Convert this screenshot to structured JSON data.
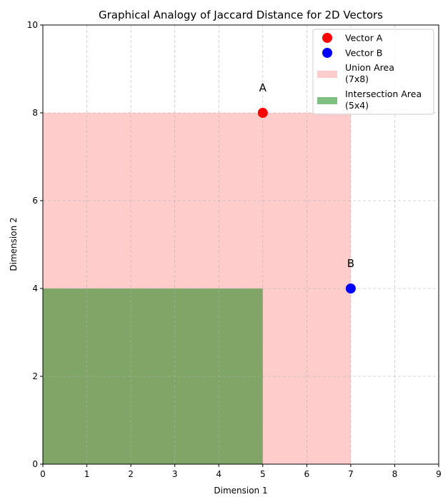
{
  "chart_data": {
    "type": "scatter",
    "title": "Graphical Analogy of Jaccard Distance for 2D Vectors",
    "xlabel": "Dimension 1",
    "ylabel": "Dimension 2",
    "xlim": [
      0,
      9
    ],
    "ylim": [
      0,
      10
    ],
    "xticks": [
      "0",
      "1",
      "2",
      "3",
      "4",
      "5",
      "6",
      "7",
      "8",
      "9"
    ],
    "yticks": [
      "0",
      "2",
      "4",
      "6",
      "8",
      "10"
    ],
    "grid": true,
    "legend_position": "top-right",
    "points": [
      {
        "name": "Vector A",
        "label": "A",
        "x": 5,
        "y": 8,
        "color": "#ff0000"
      },
      {
        "name": "Vector B",
        "label": "B",
        "x": 7,
        "y": 4,
        "color": "#0000ff"
      }
    ],
    "areas": [
      {
        "name": "Union Area (7x8)",
        "legend_lines": [
          "Union Area",
          "(7x8)"
        ],
        "x": [
          0,
          7
        ],
        "y": [
          0,
          8
        ],
        "color": "#ff9999",
        "opacity": 0.5
      },
      {
        "name": "Intersection Area (5x4)",
        "legend_lines": [
          "Intersection Area",
          "(5x4)"
        ],
        "x": [
          0,
          5
        ],
        "y": [
          0,
          4
        ],
        "color": "#008000",
        "opacity": 0.5
      }
    ]
  }
}
